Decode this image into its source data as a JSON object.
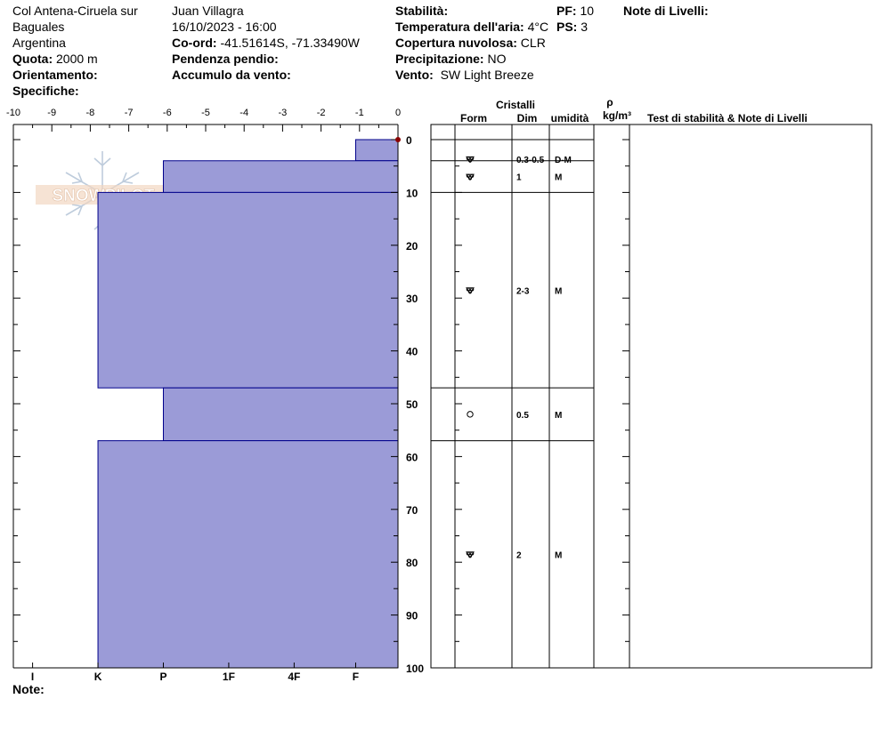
{
  "header": {
    "location": [
      "Col Antena-Ciruela sur",
      "Baguales",
      "Argentina"
    ],
    "elevation_label": "Quota:",
    "elevation": "2000 m",
    "aspect_label": "Orientamento:",
    "specifics_label": "Specifiche:",
    "observer": "Juan Villagra",
    "datetime": "16/10/2023 - 16:00",
    "coords_label": "Co-ord:",
    "coords": "-41.51614S, -71.33490W",
    "slope_label": "Pendenza pendio:",
    "wind_loading_label": "Accumulo da vento:",
    "stability_label": "Stabilità:",
    "air_temp_label": "Temperatura dell'aria:",
    "air_temp": "4°C",
    "sky_label": "Copertura nuvolosa:",
    "sky": "CLR",
    "precip_label": "Precipitazione:",
    "precip": "NO",
    "wind_label": "Vento:",
    "wind": "SW Light Breeze",
    "pf_label": "PF:",
    "pf": "10",
    "ps_label": "PS:",
    "ps": "3",
    "layer_notes_label": "Note di Livelli:"
  },
  "logo_text": "SNOWPILOT",
  "footer": {
    "notes_label": "Note:"
  },
  "table_headers": {
    "crystals": "Cristalli",
    "form": "Form",
    "size": "Dim",
    "moisture": "umidità",
    "rho": "ρ",
    "density_unit": "kg/m³",
    "tests": "Test di stabilità & Note di Livelli"
  },
  "chart_data": {
    "type": "area",
    "temp_axis": {
      "min": -10,
      "max": 0,
      "ticks": [
        "-10",
        "-9",
        "-8",
        "-7",
        "-6",
        "-5",
        "-4",
        "-3",
        "-2",
        "-1",
        "0"
      ]
    },
    "depth_axis": {
      "min": 0,
      "max": 100,
      "ticks": [
        "0",
        "10",
        "20",
        "30",
        "40",
        "50",
        "60",
        "70",
        "80",
        "90",
        "100"
      ]
    },
    "hardness_labels": [
      "I",
      "K",
      "P",
      "1F",
      "4F",
      "F"
    ],
    "hardness_positions": [
      -9.5,
      -7.8,
      -6.1,
      -4.4,
      -2.7,
      -1.1
    ],
    "snow_temps": [
      {
        "depth": 0,
        "temp": 0
      }
    ],
    "layers": [
      {
        "top": 0,
        "bottom": 4,
        "hardness_value": -1.1,
        "form": "faceted-rounded",
        "size": "0.3-0.5",
        "moisture": "D-M"
      },
      {
        "top": 4,
        "bottom": 10,
        "hardness_value": -6.1,
        "form": "faceted-rounded",
        "size": "1",
        "moisture": "M"
      },
      {
        "top": 10,
        "bottom": 47,
        "hardness_value": -7.8,
        "form": "faceted-rounded",
        "size": "2-3",
        "moisture": "M"
      },
      {
        "top": 47,
        "bottom": 57,
        "hardness_value": -6.1,
        "form": "melt-freeze",
        "size": "0.5",
        "moisture": "M"
      },
      {
        "top": 57,
        "bottom": 100,
        "hardness_value": -7.8,
        "form": "faceted-rounded",
        "size": "2",
        "moisture": "M"
      }
    ],
    "colors": {
      "fill": "#9b9bd7",
      "outline": "#00008b",
      "temp_point": "#8b0000"
    }
  }
}
